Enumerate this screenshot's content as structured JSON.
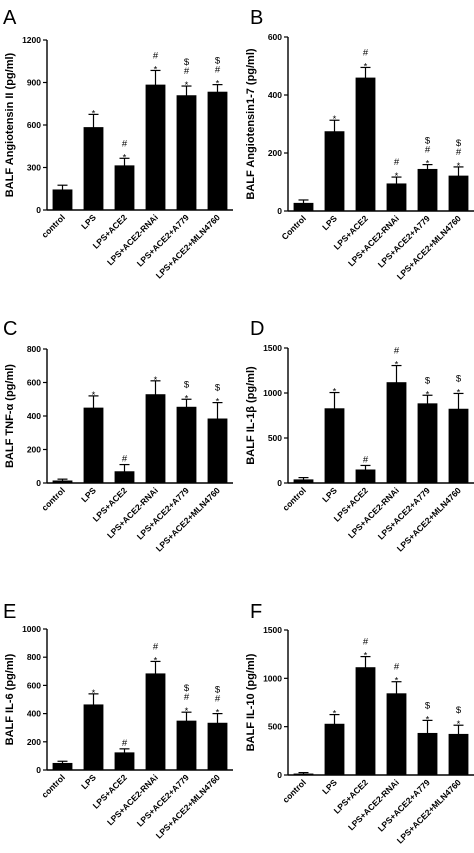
{
  "chart_data": [
    {
      "type": "bar",
      "panel_label": "A",
      "ylabel": "BALF Angiotensin II (pg/ml)",
      "ylim": [
        0,
        1200
      ],
      "yticks": [
        "0",
        "300",
        "600",
        "900",
        "1200"
      ],
      "categories": [
        "control",
        "LPS",
        "LPS+ACE2",
        "LPS+ACE2-RNAi",
        "LPS+ACE2+A779",
        "LPS+ACE2+MLN4760"
      ],
      "values": [
        145,
        585,
        315,
        885,
        810,
        835
      ],
      "errors": [
        30,
        90,
        50,
        100,
        65,
        50
      ],
      "annotations": [
        [],
        [
          "*"
        ],
        [
          "#",
          "*"
        ],
        [
          "#",
          "*"
        ],
        [
          "$",
          "#",
          "*"
        ],
        [
          "$",
          "#",
          "*"
        ]
      ]
    },
    {
      "type": "bar",
      "panel_label": "B",
      "ylabel": "BALF Angiotensin1-7 (pg/ml)",
      "ylim": [
        0,
        600
      ],
      "yticks": [
        "0",
        "200",
        "400",
        "600"
      ],
      "categories": [
        "Control",
        "LPS",
        "LPS+ACE2",
        "LPS+ACE2-RNAi",
        "LPS+ACE2+A779",
        "LPS+ACE2+MLN4760"
      ],
      "values": [
        28,
        275,
        460,
        95,
        145,
        122
      ],
      "errors": [
        10,
        38,
        35,
        22,
        15,
        30
      ],
      "annotations": [
        [],
        [
          "*"
        ],
        [
          "#",
          "*"
        ],
        [
          "#",
          "*"
        ],
        [
          "$",
          "#",
          "*"
        ],
        [
          "$",
          "#",
          "*"
        ]
      ]
    },
    {
      "type": "bar",
      "panel_label": "C",
      "ylabel": "BALF TNF-α (pg/ml)",
      "ylim": [
        0,
        800
      ],
      "yticks": [
        "0",
        "200",
        "400",
        "600",
        "800"
      ],
      "categories": [
        "control",
        "LPS",
        "LPS+ACE2",
        "LPS+ACE2-RNAi",
        "LPS+ACE2+A779",
        "LPS+ACE2+MLN4760"
      ],
      "values": [
        15,
        450,
        70,
        530,
        455,
        385
      ],
      "errors": [
        8,
        70,
        40,
        80,
        45,
        95
      ],
      "annotations": [
        [],
        [
          "*"
        ],
        [
          "#"
        ],
        [
          "*"
        ],
        [
          "$",
          "*"
        ],
        [
          "$",
          "*"
        ]
      ]
    },
    {
      "type": "bar",
      "panel_label": "D",
      "ylabel": "BALF IL-1β  (pg/ml)",
      "ylim": [
        0,
        1500
      ],
      "yticks": [
        "0",
        "500",
        "1000",
        "1500"
      ],
      "categories": [
        "control",
        "LPS",
        "LPS+ACE2",
        "LPS+ACE2-RNAi",
        "LPS+ACE2+A779",
        "LPS+ACE2+MLN4760"
      ],
      "values": [
        40,
        830,
        150,
        1120,
        885,
        825
      ],
      "errors": [
        20,
        175,
        45,
        185,
        90,
        170
      ],
      "annotations": [
        [],
        [
          "*"
        ],
        [
          "#"
        ],
        [
          "#",
          "*"
        ],
        [
          "$",
          "*"
        ],
        [
          "$",
          "*"
        ]
      ]
    },
    {
      "type": "bar",
      "panel_label": "E",
      "ylabel": "BALF IL-6  (pg/ml)",
      "ylim": [
        0,
        1000
      ],
      "yticks": [
        "0",
        "200",
        "400",
        "600",
        "800",
        "1000"
      ],
      "categories": [
        "control",
        "LPS",
        "LPS+ACE2",
        "LPS+ACE2-RNAi",
        "LPS+ACE2+A779",
        "LPS+ACE2+MLN4760"
      ],
      "values": [
        50,
        465,
        125,
        685,
        350,
        335
      ],
      "errors": [
        12,
        75,
        25,
        85,
        60,
        65
      ],
      "annotations": [
        [],
        [
          "*"
        ],
        [
          "#"
        ],
        [
          "#",
          "*"
        ],
        [
          "$",
          "#",
          "*"
        ],
        [
          "$",
          "#",
          "*"
        ]
      ]
    },
    {
      "type": "bar",
      "panel_label": "F",
      "ylabel": "BALF IL-10  (pg/ml)",
      "ylim": [
        0,
        1500
      ],
      "yticks": [
        "0",
        "500",
        "1000",
        "1500"
      ],
      "categories": [
        "control",
        "LPS",
        "LPS+ACE2",
        "LPS+ACE2-RNAi",
        "LPS+ACE2+A779",
        "LPS+ACE2+MLN4760"
      ],
      "values": [
        15,
        530,
        1115,
        845,
        435,
        425
      ],
      "errors": [
        10,
        95,
        110,
        120,
        130,
        90
      ],
      "annotations": [
        [],
        [
          "*"
        ],
        [
          "#",
          "*"
        ],
        [
          "#",
          "*"
        ],
        [
          "$",
          "*"
        ],
        [
          "$",
          "*"
        ]
      ]
    }
  ]
}
